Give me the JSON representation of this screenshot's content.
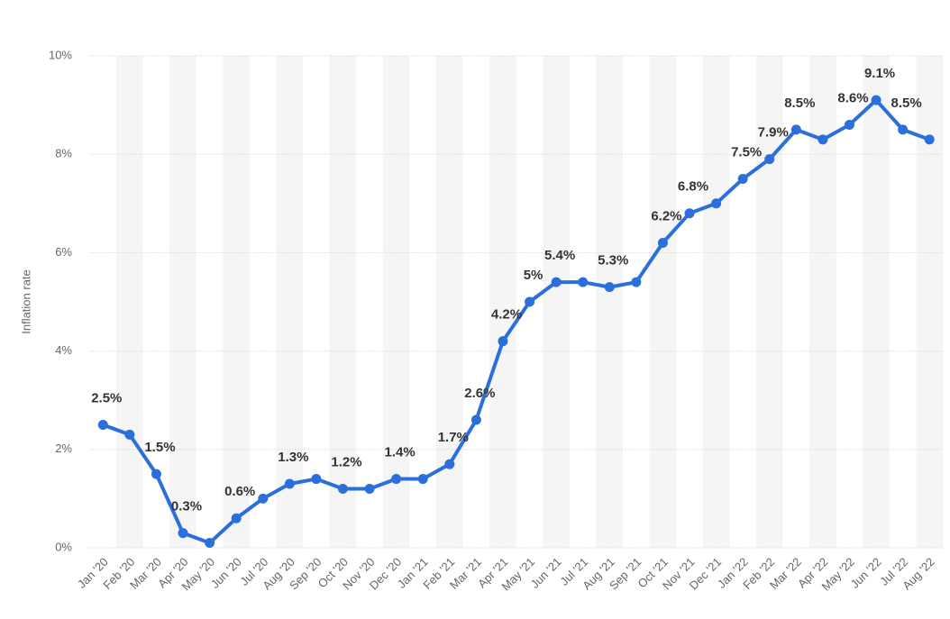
{
  "chart_data": {
    "type": "line",
    "y_label": "Inflation rate",
    "categories": [
      "Jan '20",
      "Feb '20",
      "Mar '20",
      "Apr '20",
      "May '20",
      "Jun '20",
      "Jul '20",
      "Aug '20",
      "Sep '20",
      "Oct '20",
      "Nov '20",
      "Dec '20",
      "Jan '21",
      "Feb '21",
      "Mar '21",
      "Apr '21",
      "May '21",
      "Jun '21",
      "Jul '21",
      "Aug '21",
      "Sep '21",
      "Oct '21",
      "Nov '21",
      "Dec '21",
      "Jan '22",
      "Feb '22",
      "Mar '22",
      "Apr '22",
      "May '22",
      "Jun '22",
      "Jul '22",
      "Aug '22"
    ],
    "values": [
      2.5,
      2.3,
      1.5,
      0.3,
      0.1,
      0.6,
      1.0,
      1.3,
      1.4,
      1.2,
      1.2,
      1.4,
      1.4,
      1.7,
      2.6,
      4.2,
      5.0,
      5.4,
      5.4,
      5.3,
      5.4,
      6.2,
      6.8,
      7.0,
      7.5,
      7.9,
      8.5,
      8.3,
      8.6,
      9.1,
      8.5,
      8.3
    ],
    "value_labels": [
      "2.5%",
      null,
      "1.5%",
      "0.3%",
      null,
      "0.6%",
      null,
      "1.3%",
      null,
      "1.2%",
      null,
      "1.4%",
      null,
      "1.7%",
      "2.6%",
      "4.2%",
      "5%",
      "5.4%",
      null,
      "5.3%",
      null,
      "6.2%",
      "6.8%",
      null,
      "7.5%",
      "7.9%",
      "8.5%",
      null,
      "8.6%",
      "9.1%",
      "8.5%",
      null
    ],
    "color": "#2a6fdb",
    "ylim": [
      0,
      10
    ],
    "yticks": [
      {
        "value": 0,
        "label": "0%"
      },
      {
        "value": 2,
        "label": "2%"
      },
      {
        "value": 4,
        "label": "4%"
      },
      {
        "value": 6,
        "label": "6%"
      },
      {
        "value": 8,
        "label": "8%"
      },
      {
        "value": 10,
        "label": "10%"
      }
    ],
    "grid": true
  }
}
